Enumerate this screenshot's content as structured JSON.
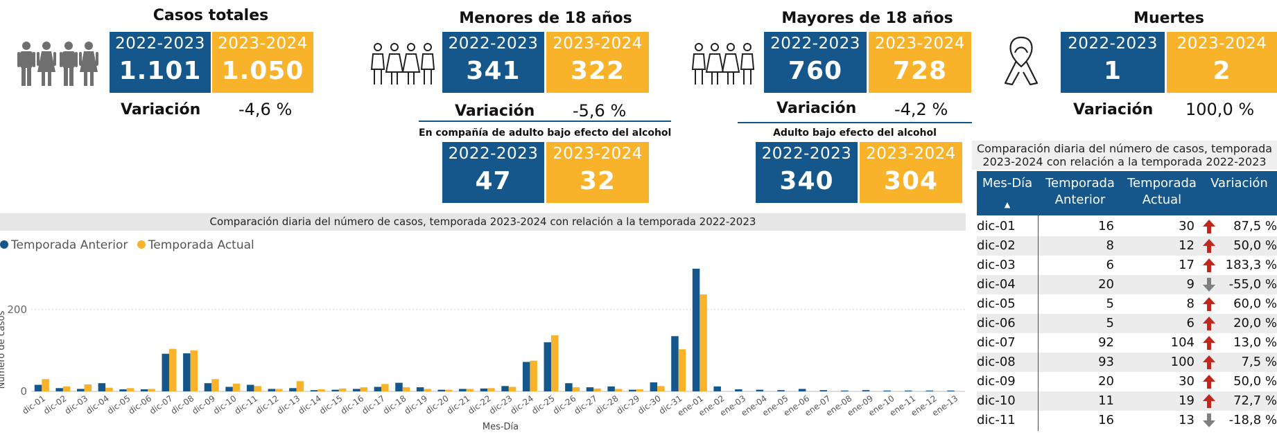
{
  "kpis": {
    "total": {
      "title": "Casos totales",
      "prev_label": "2022-2023",
      "prev_value": "1.101",
      "curr_label": "2023-2024",
      "curr_value": "1.050",
      "var_label": "Variación",
      "var_value": "-4,6 %"
    },
    "minors": {
      "title": "Menores de 18 años",
      "prev_label": "2022-2023",
      "prev_value": "341",
      "curr_label": "2023-2024",
      "curr_value": "322",
      "var_label": "Variación",
      "var_value": "-5,6 %"
    },
    "adults": {
      "title": "Mayores de 18 años",
      "prev_label": "2022-2023",
      "prev_value": "760",
      "curr_label": "2023-2024",
      "curr_value": "728",
      "var_label": "Variación",
      "var_value": "-4,2 %"
    },
    "deaths": {
      "title": "Muertes",
      "prev_label": "2022-2023",
      "prev_value": "1",
      "curr_label": "2023-2024",
      "curr_value": "2",
      "var_label": "Variación",
      "var_value": "100,0 %"
    }
  },
  "sub_kpis": {
    "minors_alcohol": {
      "title": "En compañía de adulto bajo efecto del alcohol",
      "prev_label": "2022-2023",
      "prev_value": "47",
      "curr_label": "2023-2024",
      "curr_value": "32"
    },
    "adults_alcohol": {
      "title": "Adulto bajo efecto del alcohol",
      "prev_label": "2022-2023",
      "prev_value": "340",
      "curr_label": "2023-2024",
      "curr_value": "304"
    }
  },
  "icons": {
    "total": "family-icon",
    "minors": "children-icon",
    "adults": "adults-icon",
    "deaths": "ribbon-icon"
  },
  "colors": {
    "blue": "#15578a",
    "yellow": "#f9b32a",
    "arrow_up": "#c0281e",
    "arrow_down": "#7f7f7f"
  },
  "chart_data": {
    "type": "bar",
    "title": "Comparación diaria del número de casos, temporada 2023-2024 con relación a la temporada 2022-2023",
    "xlabel": "Mes-Día",
    "ylabel": "Número de casos",
    "legend_position": "top-left",
    "yticks": [
      0,
      200
    ],
    "ylim": [
      0,
      310
    ],
    "categories": [
      "dic-01",
      "dic-02",
      "dic-03",
      "dic-04",
      "dic-05",
      "dic-06",
      "dic-07",
      "dic-08",
      "dic-09",
      "dic-10",
      "dic-11",
      "dic-12",
      "dic-13",
      "dic-14",
      "dic-15",
      "dic-16",
      "dic-17",
      "dic-18",
      "dic-19",
      "dic-20",
      "dic-21",
      "dic-22",
      "dic-23",
      "dic-24",
      "dic-25",
      "dic-26",
      "dic-27",
      "dic-28",
      "dic-29",
      "dic-30",
      "dic-31",
      "ene-01",
      "ene-02",
      "ene-03",
      "ene-04",
      "ene-05",
      "ene-06",
      "ene-07",
      "ene-08",
      "ene-09",
      "ene-10",
      "ene-11",
      "ene-12",
      "ene-13"
    ],
    "series": [
      {
        "name": "Temporada Anterior",
        "color": "#15578a",
        "values": [
          16,
          8,
          6,
          20,
          5,
          5,
          92,
          93,
          20,
          11,
          16,
          6,
          8,
          3,
          4,
          6,
          11,
          21,
          10,
          4,
          6,
          7,
          13,
          72,
          120,
          20,
          10,
          12,
          4,
          22,
          135,
          300,
          12,
          5,
          4,
          3,
          6,
          3,
          2,
          3,
          2,
          2,
          2,
          2
        ]
      },
      {
        "name": "Temporada Actual",
        "color": "#f9b32a",
        "values": [
          30,
          12,
          17,
          9,
          8,
          6,
          104,
          100,
          30,
          19,
          13,
          6,
          25,
          5,
          7,
          10,
          18,
          10,
          6,
          4,
          6,
          8,
          11,
          75,
          137,
          10,
          7,
          6,
          5,
          13,
          103,
          237,
          0,
          0,
          0,
          0,
          0,
          0,
          0,
          0,
          0,
          0,
          0,
          0
        ]
      }
    ]
  },
  "table": {
    "title_line1": "Comparación diaria del número de casos, temporada",
    "title_line2": "2023-2024 con relación a la temporada 2022-2023",
    "headers": {
      "col1": "Mes-Día",
      "col2_line1": "Temporada",
      "col2_line2": "Anterior",
      "col3_line1": "Temporada",
      "col3_line2": "Actual",
      "col4": "Variación"
    },
    "rows": [
      {
        "day": "dic-01",
        "prev": "16",
        "curr": "30",
        "dir": "up",
        "var": "87,5 %"
      },
      {
        "day": "dic-02",
        "prev": "8",
        "curr": "12",
        "dir": "up",
        "var": "50,0 %"
      },
      {
        "day": "dic-03",
        "prev": "6",
        "curr": "17",
        "dir": "up",
        "var": "183,3 %"
      },
      {
        "day": "dic-04",
        "prev": "20",
        "curr": "9",
        "dir": "down",
        "var": "-55,0 %"
      },
      {
        "day": "dic-05",
        "prev": "5",
        "curr": "8",
        "dir": "up",
        "var": "60,0 %"
      },
      {
        "day": "dic-06",
        "prev": "5",
        "curr": "6",
        "dir": "up",
        "var": "20,0 %"
      },
      {
        "day": "dic-07",
        "prev": "92",
        "curr": "104",
        "dir": "up",
        "var": "13,0 %"
      },
      {
        "day": "dic-08",
        "prev": "93",
        "curr": "100",
        "dir": "up",
        "var": "7,5 %"
      },
      {
        "day": "dic-09",
        "prev": "20",
        "curr": "30",
        "dir": "up",
        "var": "50,0 %"
      },
      {
        "day": "dic-10",
        "prev": "11",
        "curr": "19",
        "dir": "up",
        "var": "72,7 %"
      },
      {
        "day": "dic-11",
        "prev": "16",
        "curr": "13",
        "dir": "down",
        "var": "-18,8 %"
      }
    ]
  }
}
